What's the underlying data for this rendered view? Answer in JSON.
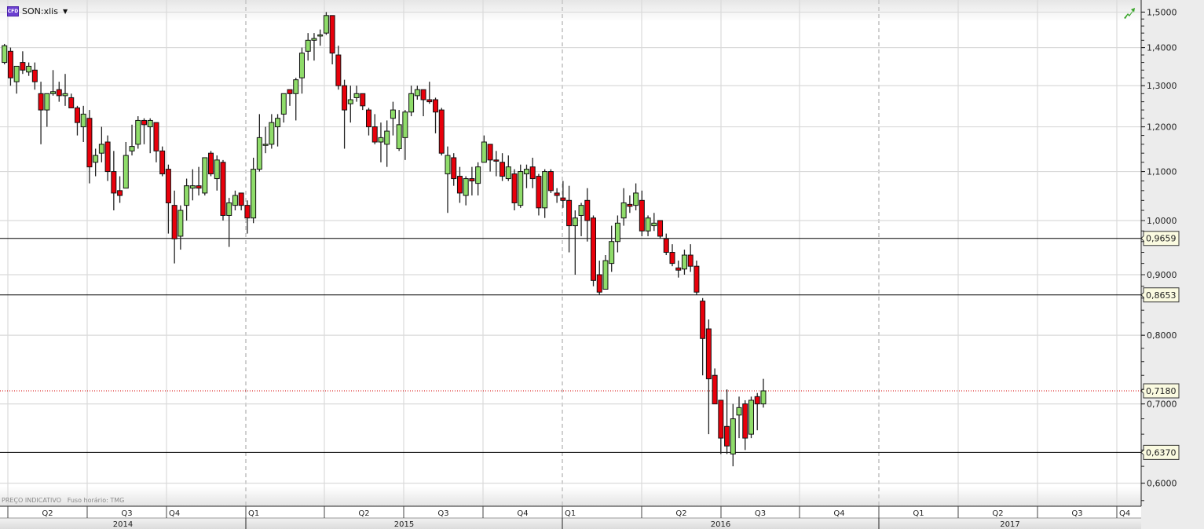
{
  "header": {
    "symbol": "SON:xlis",
    "badge": "CFD",
    "dropdown_icon": "caret-down-icon"
  },
  "footer_note": {
    "price_label": "PREÇO INDICATIVO",
    "timezone": "Fuso horário: TMG"
  },
  "trend_icon": "green-trend-arrow-icon",
  "colors": {
    "up": "#8fdc6a",
    "down": "#e8000b",
    "current_line": "#d40000",
    "level_box": "#fafae0"
  },
  "chart_data": {
    "type": "candlestick",
    "interval": "weekly",
    "y_scale": "log",
    "ylim": [
      0.57,
      1.52
    ],
    "grid": true,
    "y_ticks": [
      "1,5000",
      "1,4000",
      "1,3000",
      "1,2000",
      "1,1000",
      "1,0000",
      "0,9000",
      "0,8000",
      "0,7000",
      "0,6000"
    ],
    "y_tick_values": [
      1.5,
      1.4,
      1.3,
      1.2,
      1.1,
      1.0,
      0.9,
      0.8,
      0.7,
      0.6
    ],
    "quarters": [
      "Q2",
      "Q3",
      "Q4",
      "Q1",
      "Q2",
      "Q3",
      "Q4",
      "Q1",
      "Q2",
      "Q3",
      "Q4",
      "Q1",
      "Q2",
      "Q3",
      "Q4"
    ],
    "years": [
      "2014",
      "2015",
      "2016",
      "2017"
    ],
    "horizontal_levels": [
      {
        "value": 0.9659,
        "label": "0,9659"
      },
      {
        "value": 0.8653,
        "label": "0,8653"
      },
      {
        "value": 0.637,
        "label": "0,6370"
      }
    ],
    "current_price": {
      "value": 0.718,
      "label": "0,7180"
    },
    "ohlc_columns": [
      "open",
      "high",
      "low",
      "close"
    ],
    "candles": [
      [
        1.36,
        1.41,
        1.355,
        1.405
      ],
      [
        1.39,
        1.4,
        1.3,
        1.32
      ],
      [
        1.31,
        1.35,
        1.28,
        1.35
      ],
      [
        1.36,
        1.39,
        1.33,
        1.34
      ],
      [
        1.335,
        1.36,
        1.325,
        1.35
      ],
      [
        1.34,
        1.36,
        1.29,
        1.31
      ],
      [
        1.28,
        1.31,
        1.16,
        1.24
      ],
      [
        1.24,
        1.28,
        1.2,
        1.28
      ],
      [
        1.28,
        1.34,
        1.275,
        1.285
      ],
      [
        1.29,
        1.31,
        1.26,
        1.275
      ],
      [
        1.275,
        1.33,
        1.25,
        1.28
      ],
      [
        1.27,
        1.28,
        1.245,
        1.245
      ],
      [
        1.245,
        1.25,
        1.18,
        1.21
      ],
      [
        1.2,
        1.25,
        1.165,
        1.23
      ],
      [
        1.22,
        1.24,
        1.075,
        1.11
      ],
      [
        1.12,
        1.15,
        1.09,
        1.135
      ],
      [
        1.14,
        1.2,
        1.12,
        1.16
      ],
      [
        1.165,
        1.18,
        1.08,
        1.1
      ],
      [
        1.1,
        1.145,
        1.02,
        1.055
      ],
      [
        1.06,
        1.09,
        1.035,
        1.05
      ],
      [
        1.065,
        1.165,
        1.065,
        1.135
      ],
      [
        1.145,
        1.205,
        1.135,
        1.155
      ],
      [
        1.16,
        1.225,
        1.15,
        1.215
      ],
      [
        1.215,
        1.22,
        1.16,
        1.205
      ],
      [
        1.2,
        1.22,
        1.14,
        1.215
      ],
      [
        1.21,
        1.21,
        1.12,
        1.145
      ],
      [
        1.145,
        1.155,
        1.09,
        1.095
      ],
      [
        1.105,
        1.115,
        0.975,
        1.035
      ],
      [
        1.03,
        1.06,
        0.92,
        0.965
      ],
      [
        0.97,
        1.03,
        0.945,
        1.02
      ],
      [
        1.03,
        1.085,
        1.0,
        1.07
      ],
      [
        1.065,
        1.105,
        1.04,
        1.07
      ],
      [
        1.07,
        1.11,
        1.05,
        1.065
      ],
      [
        1.055,
        1.13,
        1.05,
        1.13
      ],
      [
        1.14,
        1.145,
        1.09,
        1.095
      ],
      [
        1.085,
        1.135,
        1.06,
        1.125
      ],
      [
        1.12,
        1.125,
        1.0,
        1.01
      ],
      [
        1.01,
        1.045,
        0.95,
        1.035
      ],
      [
        1.03,
        1.06,
        1.02,
        1.05
      ],
      [
        1.055,
        1.055,
        1.02,
        1.03
      ],
      [
        1.03,
        1.04,
        0.975,
        1.005
      ],
      [
        1.005,
        1.13,
        0.995,
        1.105
      ],
      [
        1.105,
        1.23,
        1.1,
        1.175
      ],
      [
        1.16,
        1.2,
        1.14,
        1.16
      ],
      [
        1.16,
        1.23,
        1.15,
        1.21
      ],
      [
        1.2,
        1.23,
        1.155,
        1.22
      ],
      [
        1.23,
        1.28,
        1.21,
        1.28
      ],
      [
        1.29,
        1.29,
        1.25,
        1.28
      ],
      [
        1.28,
        1.32,
        1.215,
        1.315
      ],
      [
        1.32,
        1.4,
        1.28,
        1.385
      ],
      [
        1.39,
        1.44,
        1.365,
        1.42
      ],
      [
        1.42,
        1.44,
        1.365,
        1.425
      ],
      [
        1.435,
        1.45,
        1.405,
        1.435
      ],
      [
        1.44,
        1.5,
        1.435,
        1.49
      ],
      [
        1.49,
        1.49,
        1.355,
        1.385
      ],
      [
        1.38,
        1.405,
        1.29,
        1.3
      ],
      [
        1.3,
        1.315,
        1.15,
        1.24
      ],
      [
        1.255,
        1.3,
        1.21,
        1.265
      ],
      [
        1.27,
        1.3,
        1.26,
        1.28
      ],
      [
        1.28,
        1.28,
        1.24,
        1.25
      ],
      [
        1.24,
        1.245,
        1.18,
        1.2
      ],
      [
        1.2,
        1.23,
        1.16,
        1.165
      ],
      [
        1.165,
        1.21,
        1.12,
        1.175
      ],
      [
        1.16,
        1.215,
        1.11,
        1.19
      ],
      [
        1.22,
        1.26,
        1.18,
        1.24
      ],
      [
        1.15,
        1.24,
        1.145,
        1.205
      ],
      [
        1.175,
        1.24,
        1.125,
        1.235
      ],
      [
        1.235,
        1.3,
        1.225,
        1.28
      ],
      [
        1.275,
        1.3,
        1.265,
        1.29
      ],
      [
        1.29,
        1.29,
        1.225,
        1.265
      ],
      [
        1.265,
        1.31,
        1.255,
        1.26
      ],
      [
        1.265,
        1.27,
        1.185,
        1.235
      ],
      [
        1.24,
        1.245,
        1.135,
        1.14
      ],
      [
        1.095,
        1.155,
        1.015,
        1.135
      ],
      [
        1.13,
        1.14,
        1.07,
        1.085
      ],
      [
        1.09,
        1.11,
        1.035,
        1.055
      ],
      [
        1.05,
        1.09,
        1.03,
        1.085
      ],
      [
        1.085,
        1.11,
        1.05,
        1.08
      ],
      [
        1.075,
        1.12,
        1.05,
        1.11
      ],
      [
        1.12,
        1.18,
        1.12,
        1.165
      ],
      [
        1.16,
        1.16,
        1.1,
        1.125
      ],
      [
        1.125,
        1.145,
        1.09,
        1.124
      ],
      [
        1.12,
        1.14,
        1.08,
        1.09
      ],
      [
        1.085,
        1.135,
        1.08,
        1.11
      ],
      [
        1.095,
        1.105,
        1.02,
        1.035
      ],
      [
        1.03,
        1.115,
        1.025,
        1.1
      ],
      [
        1.095,
        1.115,
        1.065,
        1.105
      ],
      [
        1.11,
        1.13,
        1.065,
        1.085
      ],
      [
        1.09,
        1.095,
        1.01,
        1.025
      ],
      [
        1.025,
        1.105,
        1.005,
        1.1
      ],
      [
        1.1,
        1.105,
        1.055,
        1.06
      ],
      [
        1.055,
        1.065,
        1.035,
        1.05
      ],
      [
        1.045,
        1.08,
        1.025,
        1.04
      ],
      [
        1.04,
        1.07,
        0.94,
        0.99
      ],
      [
        0.99,
        1.02,
        0.9,
        1.005
      ],
      [
        1.01,
        1.035,
        0.97,
        1.03
      ],
      [
        1.04,
        1.065,
        0.96,
        1.0
      ],
      [
        1.005,
        1.01,
        0.88,
        0.89
      ],
      [
        0.9,
        0.925,
        0.865,
        0.87
      ],
      [
        0.875,
        0.935,
        0.875,
        0.925
      ],
      [
        0.92,
        0.99,
        0.905,
        0.96
      ],
      [
        0.96,
        1.01,
        0.94,
        0.995
      ],
      [
        1.005,
        1.065,
        0.99,
        1.035
      ],
      [
        1.032,
        1.05,
        1.015,
        1.028
      ],
      [
        1.03,
        1.075,
        1.02,
        1.055
      ],
      [
        1.04,
        1.06,
        0.97,
        0.98
      ],
      [
        0.98,
        1.01,
        0.97,
        1.005
      ],
      [
        0.99,
        1.015,
        0.98,
        0.995
      ],
      [
        1.0,
        1.0,
        0.965,
        0.97
      ],
      [
        0.965,
        0.975,
        0.935,
        0.94
      ],
      [
        0.94,
        0.955,
        0.915,
        0.92
      ],
      [
        0.912,
        0.925,
        0.895,
        0.908
      ],
      [
        0.91,
        0.945,
        0.9,
        0.935
      ],
      [
        0.935,
        0.955,
        0.905,
        0.915
      ],
      [
        0.915,
        0.925,
        0.865,
        0.87
      ],
      [
        0.855,
        0.86,
        0.74,
        0.795
      ],
      [
        0.81,
        0.825,
        0.66,
        0.735
      ],
      [
        0.74,
        0.75,
        0.7,
        0.7
      ],
      [
        0.705,
        0.705,
        0.635,
        0.655
      ],
      [
        0.67,
        0.72,
        0.635,
        0.645
      ],
      [
        0.635,
        0.7,
        0.62,
        0.68
      ],
      [
        0.685,
        0.71,
        0.655,
        0.695
      ],
      [
        0.7,
        0.705,
        0.64,
        0.655
      ],
      [
        0.66,
        0.71,
        0.655,
        0.705
      ],
      [
        0.71,
        0.715,
        0.665,
        0.7
      ],
      [
        0.7,
        0.735,
        0.695,
        0.718
      ]
    ]
  }
}
